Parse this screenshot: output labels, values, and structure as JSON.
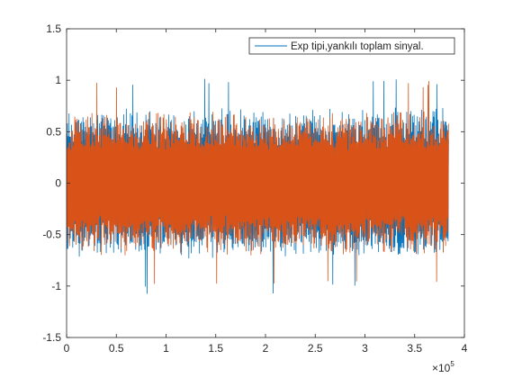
{
  "colors": {
    "series_blue": "#0072BD",
    "series_orange": "#D95319",
    "axis": "#262626",
    "background": "#ffffff"
  },
  "chart_data": {
    "type": "line",
    "title": "",
    "xlabel": "",
    "ylabel": "",
    "xlim": [
      0,
      400000
    ],
    "ylim": [
      -1.5,
      1.5
    ],
    "x_ticks": [
      0,
      50000,
      100000,
      150000,
      200000,
      250000,
      300000,
      350000,
      400000
    ],
    "x_tick_labels": [
      "0",
      "0.5",
      "1",
      "1.5",
      "2",
      "2.5",
      "3",
      "3.5",
      "4"
    ],
    "x_exponent_label": "×10",
    "x_exponent_power": "5",
    "y_ticks": [
      -1.5,
      -1,
      -0.5,
      0,
      0.5,
      1,
      1.5
    ],
    "y_tick_labels": [
      "-1.5",
      "-1",
      "-0.5",
      "0",
      "0.5",
      "1",
      "1.5"
    ],
    "grid": false,
    "legend_position": "top-right",
    "legend": [
      {
        "label": "Exp tipi,yankılı toplam sinyal.",
        "color": "#0072BD"
      }
    ],
    "series": [
      {
        "name": "Exp tipi,yankılı toplam sinyal.",
        "color": "#0072BD",
        "x_range": [
          0,
          384000
        ],
        "typical_amplitude": 0.75,
        "peak_max": 1.02,
        "peak_min": -1.08
      },
      {
        "color": "#D95319",
        "x_range": [
          0,
          384000
        ],
        "typical_amplitude": 0.72,
        "peak_max": 1.01,
        "peak_min": -1.03
      }
    ]
  }
}
